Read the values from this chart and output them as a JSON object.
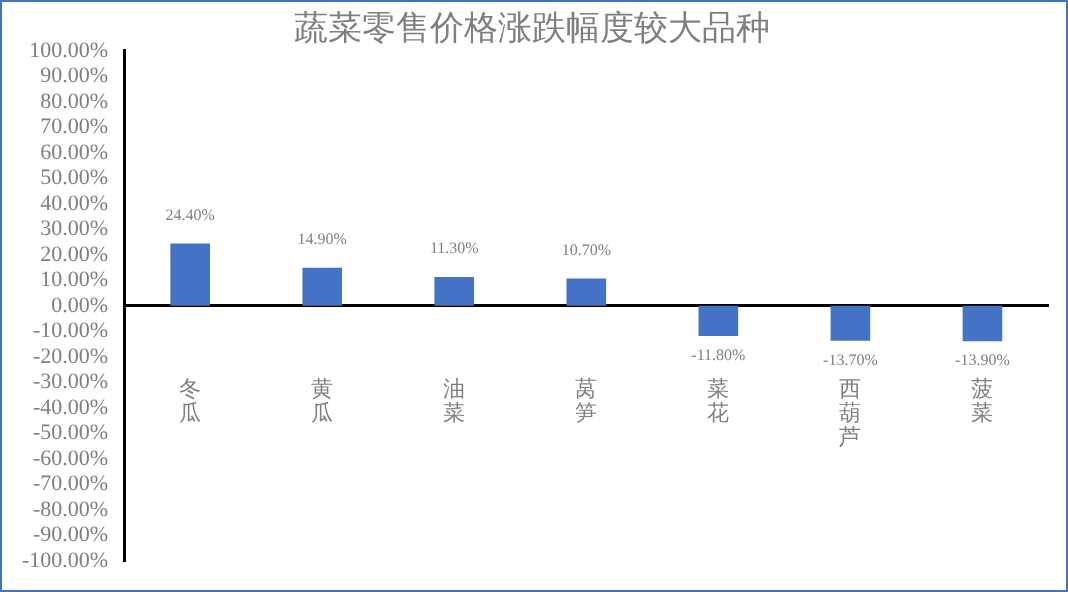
{
  "chart_data": {
    "type": "bar",
    "title": "蔬菜零售价格涨跌幅度较大品种",
    "categories": [
      "冬瓜",
      "黄瓜",
      "油菜",
      "莴笋",
      "菜花",
      "西葫芦",
      "菠菜"
    ],
    "values": [
      24.4,
      14.9,
      11.3,
      10.7,
      -11.8,
      -13.7,
      -13.9
    ],
    "value_labels": [
      "24.40%",
      "14.90%",
      "11.30%",
      "10.70%",
      "-11.80%",
      "-13.70%",
      "-13.90%"
    ],
    "color": "#4472c4",
    "ylim": [
      -100,
      100
    ],
    "yticks": [
      {
        "value": -100,
        "label": "-100.00%"
      },
      {
        "value": -90,
        "label": "-90.00%"
      },
      {
        "value": -80,
        "label": "-80.00%"
      },
      {
        "value": -70,
        "label": "-70.00%"
      },
      {
        "value": -60,
        "label": "-60.00%"
      },
      {
        "value": -50,
        "label": "-50.00%"
      },
      {
        "value": -40,
        "label": "-40.00%"
      },
      {
        "value": -30,
        "label": "-30.00%"
      },
      {
        "value": -20,
        "label": "-20.00%"
      },
      {
        "value": -10,
        "label": "-10.00%"
      },
      {
        "value": 0,
        "label": "0.00%"
      },
      {
        "value": 10,
        "label": "10.00%"
      },
      {
        "value": 20,
        "label": "20.00%"
      },
      {
        "value": 30,
        "label": "30.00%"
      },
      {
        "value": 40,
        "label": "40.00%"
      },
      {
        "value": 50,
        "label": "50.00%"
      },
      {
        "value": 60,
        "label": "60.00%"
      },
      {
        "value": 70,
        "label": "70.00%"
      },
      {
        "value": 80,
        "label": "80.00%"
      },
      {
        "value": 90,
        "label": "90.00%"
      },
      {
        "value": 100,
        "label": "100.00%"
      }
    ]
  }
}
